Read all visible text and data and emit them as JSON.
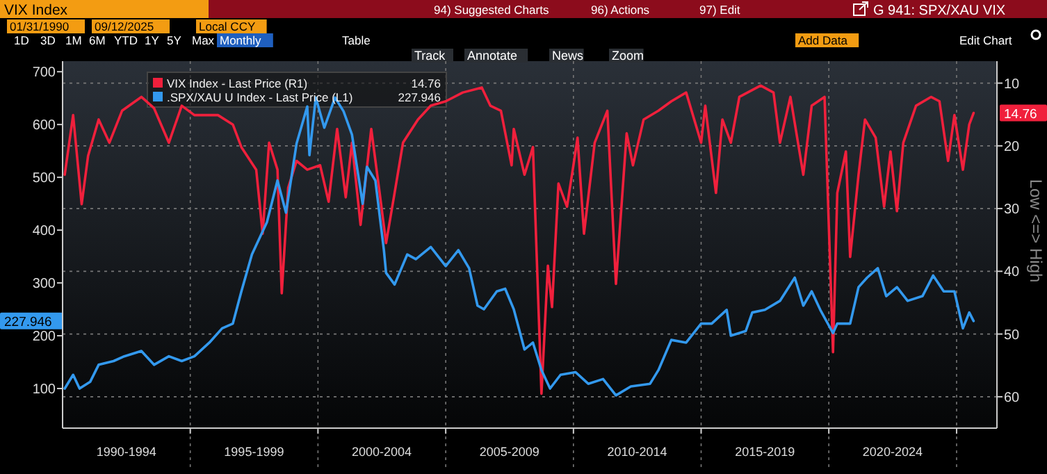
{
  "chart_data": {
    "type": "line",
    "title": "VIX Index",
    "subtitle": "G 941: SPX/XAU VIX",
    "y2label": "Low <=> High",
    "xlim": [
      "1990-01",
      "2026-08"
    ],
    "xticks": [
      {
        "value": "1992-07",
        "label": "1990-1994"
      },
      {
        "value": "1995-01",
        "label": null
      },
      {
        "value": "1997-07",
        "label": "1995-1999"
      },
      {
        "value": "2000-01",
        "label": null
      },
      {
        "value": "2002-07",
        "label": "2000-2004"
      },
      {
        "value": "2005-01",
        "label": null
      },
      {
        "value": "2007-07",
        "label": "2005-2009"
      },
      {
        "value": "2010-01",
        "label": null
      },
      {
        "value": "2012-07",
        "label": "2010-2014"
      },
      {
        "value": "2015-01",
        "label": null
      },
      {
        "value": "2017-07",
        "label": "2015-2019"
      },
      {
        "value": "2020-01",
        "label": null
      },
      {
        "value": "2022-07",
        "label": "2020-2024"
      },
      {
        "value": "2025-01",
        "label": null
      }
    ],
    "ylim": [
      25,
      720
    ],
    "yticks": [
      100,
      200,
      300,
      400,
      500,
      600,
      700
    ],
    "y2lim": [
      65,
      6.5
    ],
    "y2ticks": [
      10,
      20,
      30,
      40,
      50,
      60
    ],
    "grid": true,
    "legend": "top left",
    "series": [
      {
        "name": "VIX Index - Last Price (R1)",
        "color": "#f0203c",
        "axis": "y2",
        "x": [
          "1990-02",
          "1990-06",
          "1990-10",
          "1991-01",
          "1991-06",
          "1991-11",
          "1992-05",
          "1993-02",
          "1993-08",
          "1994-03",
          "1994-09",
          "1995-03",
          "1996-02",
          "1996-09",
          "1997-01",
          "1997-08",
          "1997-11",
          "1998-02",
          "1998-06",
          "1998-08",
          "1998-11",
          "1999-03",
          "1999-08",
          "2000-02",
          "2000-06",
          "2000-10",
          "2001-02",
          "2001-05",
          "2001-09",
          "2002-02",
          "2002-06",
          "2002-09",
          "2003-01",
          "2003-05",
          "2003-12",
          "2004-06",
          "2005-01",
          "2005-09",
          "2006-06",
          "2006-10",
          "2007-03",
          "2007-08",
          "2007-09",
          "2008-02",
          "2008-06",
          "2008-10",
          "2009-01",
          "2009-03",
          "2009-06",
          "2009-10",
          "2010-01",
          "2010-03",
          "2010-06",
          "2010-11",
          "2011-05",
          "2011-09",
          "2012-02",
          "2012-05",
          "2012-10",
          "2013-05",
          "2013-11",
          "2014-06",
          "2015-01",
          "2015-03",
          "2015-08",
          "2015-11",
          "2016-03",
          "2016-07",
          "2017-05",
          "2017-11",
          "2018-02",
          "2018-07",
          "2019-01",
          "2019-05",
          "2019-11",
          "2020-03",
          "2020-05",
          "2020-09",
          "2020-11",
          "2021-03",
          "2021-06",
          "2021-11",
          "2022-03",
          "2022-06",
          "2022-09",
          "2022-12",
          "2023-06",
          "2024-01",
          "2024-05",
          "2024-09",
          "2024-12",
          "2025-04",
          "2025-07",
          "2025-09"
        ],
        "values": [
          24.6,
          15.1,
          29.3,
          21.6,
          15.8,
          19.5,
          14.4,
          12.2,
          14.0,
          19.5,
          13.6,
          15.1,
          15.1,
          16.6,
          20.2,
          23.8,
          34.0,
          19.5,
          23.8,
          43.5,
          26.7,
          22.4,
          23.8,
          23.1,
          28.9,
          17.3,
          28.2,
          19.5,
          32.6,
          17.3,
          27.5,
          35.5,
          27.5,
          19.5,
          15.8,
          13.6,
          12.9,
          11.5,
          10.7,
          13.6,
          14.4,
          23.1,
          17.3,
          24.6,
          20.2,
          59.5,
          39.1,
          45.7,
          26.0,
          29.7,
          23.1,
          18.7,
          34.0,
          19.5,
          14.4,
          42.0,
          18.0,
          23.1,
          15.8,
          14.4,
          12.9,
          11.5,
          19.5,
          13.6,
          27.5,
          15.8,
          19.5,
          12.2,
          10.4,
          11.5,
          19.5,
          12.2,
          24.6,
          13.6,
          12.2,
          52.9,
          27.5,
          20.9,
          37.7,
          24.6,
          15.8,
          18.7,
          29.7,
          20.9,
          30.4,
          19.5,
          13.6,
          12.2,
          12.9,
          22.4,
          15.1,
          23.8,
          16.6,
          14.76
        ]
      },
      {
        "name": ".SPX/XAU U Index - Last Price (L1)",
        "color": "#3399ee",
        "axis": "y",
        "x": [
          "1990-02",
          "1990-06",
          "1990-09",
          "1991-02",
          "1991-06",
          "1992-01",
          "1992-06",
          "1993-02",
          "1993-08",
          "1994-03",
          "1994-09",
          "1995-03",
          "1995-10",
          "1996-04",
          "1996-09",
          "1997-01",
          "1997-06",
          "1998-01",
          "1998-06",
          "1998-10",
          "1999-03",
          "1999-08",
          "1999-09",
          "1999-12",
          "2000-04",
          "2000-09",
          "2001-01",
          "2001-05",
          "2001-10",
          "2001-12",
          "2002-04",
          "2002-08",
          "2002-09",
          "2003-01",
          "2003-07",
          "2003-11",
          "2004-06",
          "2005-01",
          "2005-07",
          "2005-12",
          "2006-04",
          "2006-07",
          "2007-01",
          "2007-05",
          "2007-09",
          "2008-02",
          "2008-06",
          "2008-10",
          "2009-02",
          "2009-07",
          "2010-02",
          "2010-08",
          "2011-03",
          "2011-09",
          "2012-04",
          "2013-01",
          "2013-05",
          "2013-11",
          "2014-06",
          "2015-01",
          "2015-06",
          "2016-01",
          "2016-03",
          "2016-10",
          "2017-01",
          "2017-07",
          "2018-02",
          "2018-09",
          "2019-01",
          "2019-05",
          "2019-09",
          "2020-03",
          "2020-05",
          "2020-11",
          "2021-03",
          "2021-07",
          "2021-12",
          "2022-04",
          "2022-09",
          "2023-02",
          "2023-09",
          "2024-02",
          "2024-07",
          "2024-12",
          "2025-04",
          "2025-07",
          "2025-09"
        ],
        "values": [
          100,
          126,
          100,
          113,
          145,
          152,
          161,
          171,
          145,
          161,
          152,
          161,
          187,
          214,
          223,
          284,
          354,
          415,
          494,
          433,
          564,
          634,
          542,
          651,
          594,
          651,
          625,
          581,
          450,
          520,
          494,
          362,
          319,
          297,
          354,
          345,
          368,
          332,
          362,
          328,
          257,
          250,
          284,
          289,
          250,
          174,
          187,
          135,
          100,
          126,
          131,
          109,
          118,
          87,
          104,
          109,
          135,
          192,
          187,
          223,
          223,
          249,
          200,
          209,
          244,
          249,
          266,
          310,
          257,
          284,
          249,
          205,
          223,
          223,
          292,
          310,
          328,
          275,
          292,
          266,
          275,
          314,
          284,
          284,
          214,
          244,
          227.946
        ]
      }
    ],
    "annotations": [
      "94) Suggested Charts",
      "96) Actions",
      "97) Edit",
      "01/31/1990",
      "09/12/2025",
      "Local CCY",
      "1D",
      "3D",
      "1M",
      "6M",
      "YTD",
      "1Y",
      "5Y",
      "Max",
      "Monthly",
      "Table",
      "Add Data",
      "Edit Chart",
      "Track",
      "Annotate",
      "News",
      "Zoom",
      "227.946",
      "14.76"
    ]
  }
}
